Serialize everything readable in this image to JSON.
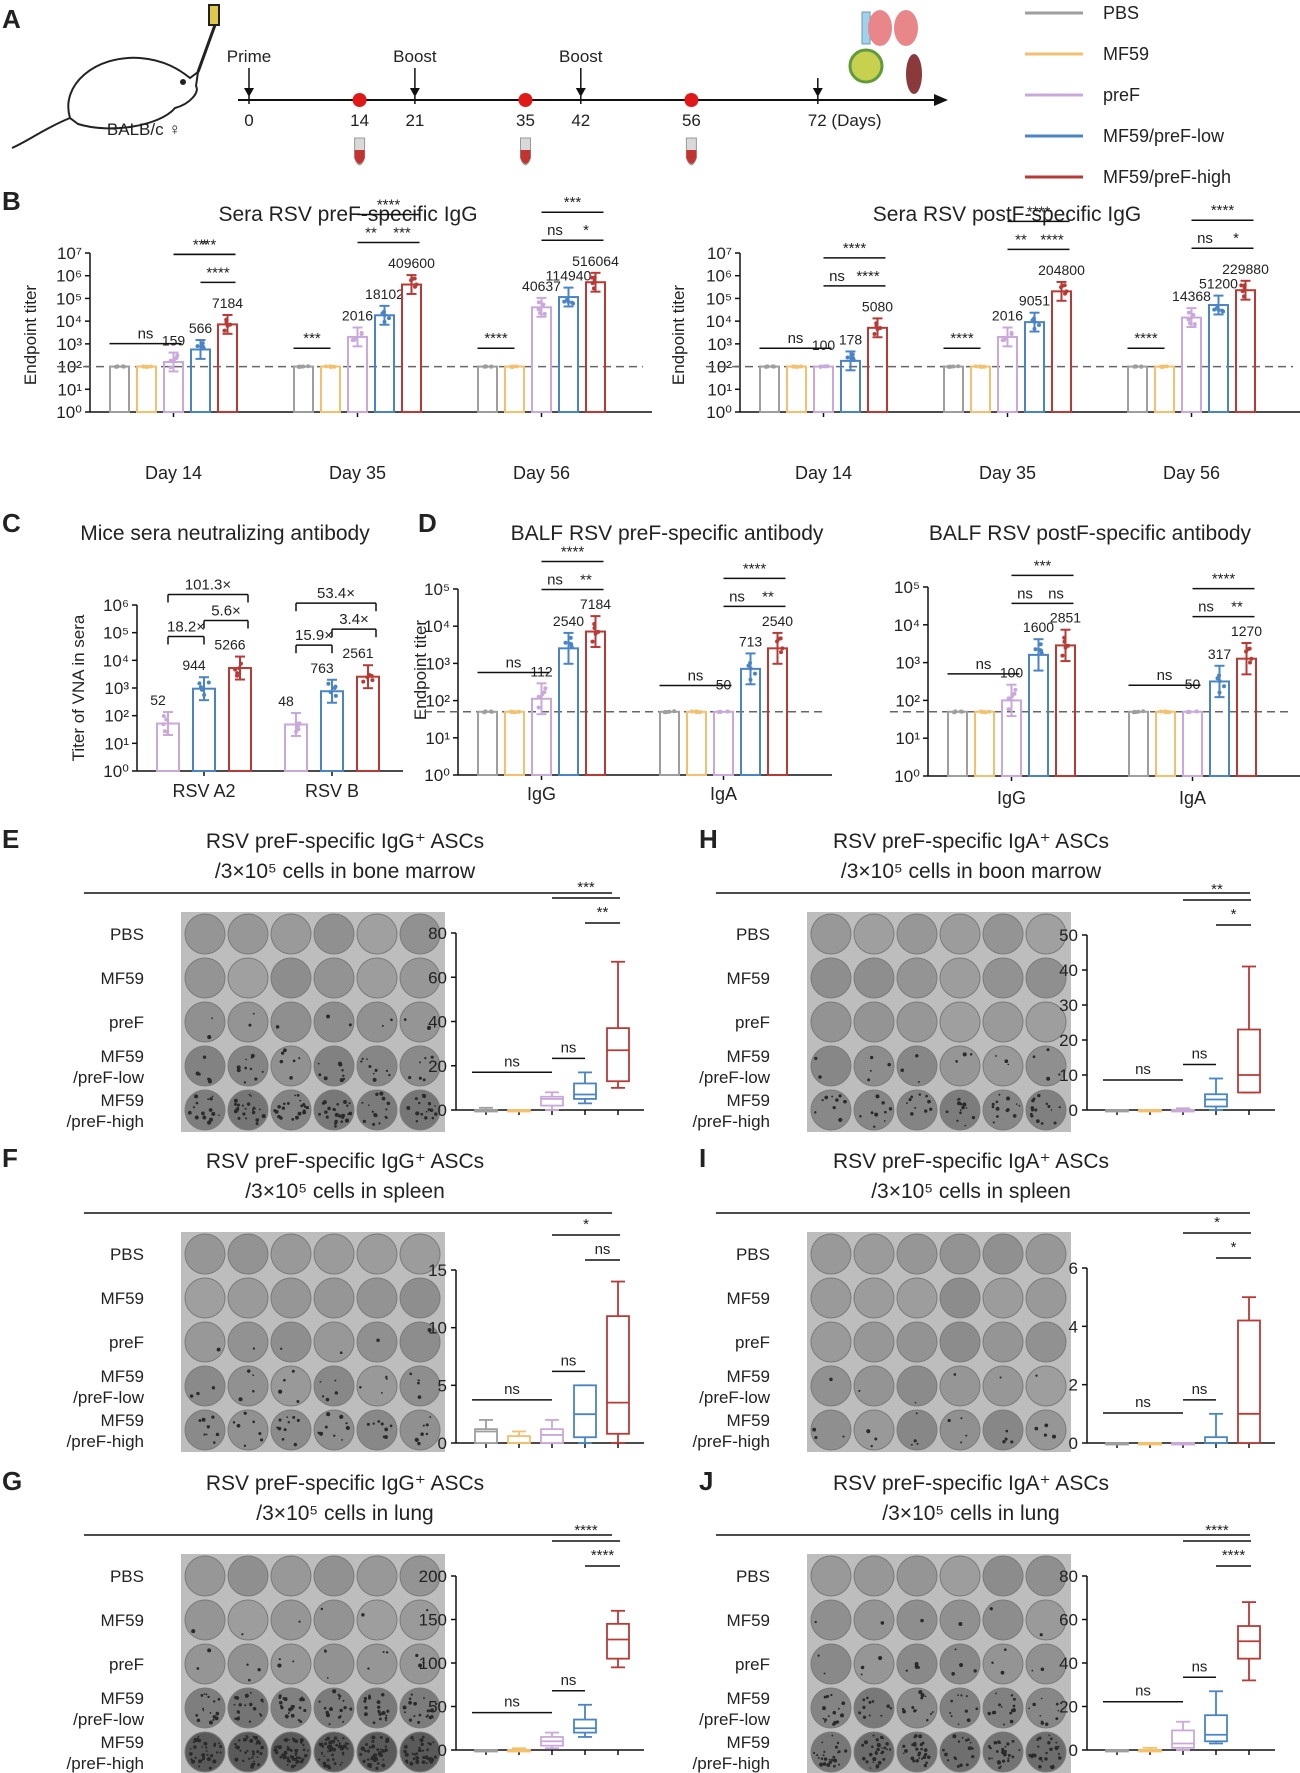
{
  "legend": [
    {
      "label": "PBS",
      "color": "#9e9e9e"
    },
    {
      "label": "MF59",
      "color": "#f2c06e"
    },
    {
      "label": "preF",
      "color": "#c9a9d9"
    },
    {
      "label": "MF59/preF-low",
      "color": "#4a84c4"
    },
    {
      "label": "MF59/preF-high",
      "color": "#b83a36"
    }
  ],
  "panel_a": {
    "letter": "A",
    "mouse_label": "BALB/c ♀",
    "events": [
      {
        "label": "Prime",
        "day": 0
      },
      {
        "label": "Boost",
        "day": 21
      },
      {
        "label": "Boost",
        "day": 42
      }
    ],
    "ticks": [
      0,
      14,
      21,
      35,
      42,
      56,
      72
    ],
    "bleed_days": [
      14,
      35,
      56
    ],
    "end_label": "72 (Days)"
  },
  "chart_data": [
    {
      "id": "b1",
      "letter": "B",
      "type": "bar",
      "title": "Sera RSV preF-specific IgG",
      "ylabel": "Endpoint titer",
      "scale": "log",
      "ylim": [
        1,
        10000000
      ],
      "tick_exponents": [
        0,
        1,
        2,
        3,
        4,
        5,
        6,
        7
      ],
      "dashed": 100,
      "categories": [
        "Day 14",
        "Day 35",
        "Day 56"
      ],
      "series_values": [
        [
          100,
          100,
          159,
          566,
          7184
        ],
        [
          100,
          100,
          2016,
          18102,
          409600
        ],
        [
          100,
          100,
          40637,
          114940,
          516064
        ]
      ],
      "labels": [
        "159",
        "566",
        "7184",
        "2016",
        "18102",
        "409600",
        "40637",
        "114940",
        "516064"
      ],
      "comparisons": [
        {
          "g": 0,
          "from": 0,
          "to": 2,
          "text": "ns"
        },
        {
          "g": 0,
          "from": 2,
          "to": 4,
          "text": "*"
        },
        {
          "g": 0,
          "from": 3,
          "to": 4,
          "text": "****"
        },
        {
          "g": 0,
          "from": 2,
          "to": 4,
          "text": "****"
        },
        {
          "g": 1,
          "from": 0,
          "to": 1,
          "text": "***"
        },
        {
          "g": 1,
          "from": 2,
          "to": 3,
          "text": "**"
        },
        {
          "g": 1,
          "from": 3,
          "to": 4,
          "text": "***"
        },
        {
          "g": 1,
          "from": 2,
          "to": 4,
          "text": "****"
        },
        {
          "g": 2,
          "from": 0,
          "to": 1,
          "text": "****"
        },
        {
          "g": 2,
          "from": 2,
          "to": 3,
          "text": "ns"
        },
        {
          "g": 2,
          "from": 3,
          "to": 4,
          "text": "*"
        },
        {
          "g": 2,
          "from": 2,
          "to": 4,
          "text": "***"
        }
      ]
    },
    {
      "id": "b2",
      "type": "bar",
      "title": "Sera RSV postF-specific IgG",
      "ylabel": "Endpoint titer",
      "scale": "log",
      "ylim": [
        1,
        10000000
      ],
      "tick_exponents": [
        0,
        1,
        2,
        3,
        4,
        5,
        6,
        7
      ],
      "dashed": 100,
      "categories": [
        "Day 14",
        "Day 35",
        "Day 56"
      ],
      "series_values": [
        [
          100,
          100,
          100,
          178,
          5080
        ],
        [
          100,
          100,
          2016,
          9051,
          204800
        ],
        [
          100,
          100,
          14368,
          51200,
          229880
        ]
      ],
      "labels": [
        "100",
        "178",
        "5080",
        "2016",
        "9051",
        "204800",
        "14368",
        "51200",
        "229880"
      ],
      "comparisons": [
        {
          "g": 0,
          "from": 0,
          "to": 2,
          "text": "ns"
        },
        {
          "g": 0,
          "from": 2,
          "to": 3,
          "text": "ns"
        },
        {
          "g": 0,
          "from": 3,
          "to": 4,
          "text": "****"
        },
        {
          "g": 0,
          "from": 2,
          "to": 4,
          "text": "****"
        },
        {
          "g": 1,
          "from": 0,
          "to": 1,
          "text": "****"
        },
        {
          "g": 1,
          "from": 2,
          "to": 3,
          "text": "**"
        },
        {
          "g": 1,
          "from": 3,
          "to": 4,
          "text": "****"
        },
        {
          "g": 1,
          "from": 2,
          "to": 4,
          "text": "****"
        },
        {
          "g": 2,
          "from": 0,
          "to": 1,
          "text": "****"
        },
        {
          "g": 2,
          "from": 2,
          "to": 3,
          "text": "ns"
        },
        {
          "g": 2,
          "from": 3,
          "to": 4,
          "text": "*"
        },
        {
          "g": 2,
          "from": 2,
          "to": 4,
          "text": "****"
        }
      ]
    },
    {
      "id": "c",
      "letter": "C",
      "type": "bar",
      "title": "Mice sera neutralizing antibody",
      "ylabel": "Titer of VNA in sera",
      "scale": "log",
      "ylim": [
        1,
        1000000
      ],
      "tick_exponents": [
        0,
        1,
        2,
        3,
        4,
        5,
        6
      ],
      "dashed": null,
      "categories": [
        "RSV A2",
        "RSV B"
      ],
      "series_values": [
        [
          52,
          944,
          5266
        ],
        [
          48,
          763,
          2561
        ]
      ],
      "labels": [
        "52",
        "944",
        "5266",
        "48",
        "763",
        "2561"
      ],
      "comparisons": [
        {
          "g": 0,
          "from": 0,
          "to": 1,
          "text": "18.2×"
        },
        {
          "g": 0,
          "from": 1,
          "to": 2,
          "text": "5.6×"
        },
        {
          "g": 0,
          "from": 0,
          "to": 2,
          "text": "101.3×"
        },
        {
          "g": 1,
          "from": 0,
          "to": 1,
          "text": "15.9×"
        },
        {
          "g": 1,
          "from": 1,
          "to": 2,
          "text": "3.4×"
        },
        {
          "g": 1,
          "from": 0,
          "to": 2,
          "text": "53.4×"
        }
      ]
    },
    {
      "id": "d1",
      "letter": "D",
      "type": "bar",
      "title": "BALF RSV preF-specific antibody",
      "ylabel": "Endpoint titer",
      "scale": "log",
      "ylim": [
        1,
        100000
      ],
      "tick_exponents": [
        0,
        1,
        2,
        3,
        4,
        5
      ],
      "dashed": 50,
      "categories": [
        "IgG",
        "IgA"
      ],
      "series_values": [
        [
          50,
          50,
          112,
          2540,
          7184
        ],
        [
          50,
          50,
          50,
          713,
          2540
        ]
      ],
      "labels": [
        "112",
        "2540",
        "7184",
        "50",
        "713",
        "2540"
      ],
      "comparisons": [
        {
          "g": 0,
          "from": 0,
          "to": 2,
          "text": "ns"
        },
        {
          "g": 0,
          "from": 2,
          "to": 3,
          "text": "ns"
        },
        {
          "g": 0,
          "from": 3,
          "to": 4,
          "text": "**"
        },
        {
          "g": 0,
          "from": 2,
          "to": 4,
          "text": "****"
        },
        {
          "g": 1,
          "from": 0,
          "to": 2,
          "text": "ns"
        },
        {
          "g": 1,
          "from": 2,
          "to": 3,
          "text": "ns"
        },
        {
          "g": 1,
          "from": 3,
          "to": 4,
          "text": "**"
        },
        {
          "g": 1,
          "from": 2,
          "to": 4,
          "text": "****"
        }
      ]
    },
    {
      "id": "d2",
      "type": "bar",
      "title": "BALF RSV postF-specific antibody",
      "ylabel": "",
      "scale": "log",
      "ylim": [
        1,
        100000
      ],
      "tick_exponents": [
        0,
        1,
        2,
        3,
        4,
        5
      ],
      "dashed": 50,
      "categories": [
        "IgG",
        "IgA"
      ],
      "series_values": [
        [
          50,
          50,
          100,
          1600,
          2851
        ],
        [
          50,
          50,
          50,
          317,
          1270
        ]
      ],
      "labels": [
        "100",
        "1600",
        "2851",
        "50",
        "317",
        "1270"
      ],
      "comparisons": [
        {
          "g": 0,
          "from": 0,
          "to": 2,
          "text": "ns"
        },
        {
          "g": 0,
          "from": 2,
          "to": 3,
          "text": "ns"
        },
        {
          "g": 0,
          "from": 3,
          "to": 4,
          "text": "ns"
        },
        {
          "g": 0,
          "from": 2,
          "to": 4,
          "text": "***"
        },
        {
          "g": 1,
          "from": 0,
          "to": 2,
          "text": "ns"
        },
        {
          "g": 1,
          "from": 2,
          "to": 3,
          "text": "ns"
        },
        {
          "g": 1,
          "from": 3,
          "to": 4,
          "text": "**"
        },
        {
          "g": 1,
          "from": 2,
          "to": 4,
          "text": "****"
        }
      ]
    },
    {
      "id": "e",
      "letter": "E",
      "type": "box",
      "title_lines": [
        "RSV preF-specific IgG⁺ ASCs",
        "/3×10⁵ cells in bone marrow"
      ],
      "ticks": [
        0,
        20,
        40,
        60,
        80
      ],
      "rows": [
        "PBS",
        "MF59",
        "preF",
        "MF59\n/preF-low",
        "MF59\n/preF-high"
      ],
      "spot_density": [
        0,
        0,
        2,
        8,
        18
      ],
      "boxes": [
        {
          "min": 0,
          "q1": 0,
          "med": 0,
          "q3": 0,
          "max": 1
        },
        {
          "min": 0,
          "q1": 0,
          "med": 0,
          "q3": 0,
          "max": 0
        },
        {
          "min": 0,
          "q1": 2,
          "med": 5,
          "q3": 6,
          "max": 8
        },
        {
          "min": 3,
          "q1": 5,
          "med": 7,
          "q3": 12,
          "max": 17
        },
        {
          "min": 10,
          "q1": 13,
          "med": 27,
          "q3": 37,
          "max": 67
        }
      ],
      "comparisons": [
        {
          "from": 0,
          "to": 2,
          "text": "ns"
        },
        {
          "from": 2,
          "to": 3,
          "text": "ns"
        },
        {
          "from": 3,
          "to": 4,
          "text": "**"
        },
        {
          "from": 2,
          "to": 4,
          "text": "***"
        }
      ]
    },
    {
      "id": "f",
      "letter": "F",
      "type": "box",
      "title_lines": [
        "RSV preF-specific IgG⁺ ASCs",
        "/3×10⁵ cells in spleen"
      ],
      "ticks": [
        0,
        5,
        10,
        15
      ],
      "rows": [
        "PBS",
        "MF59",
        "preF",
        "MF59\n/preF-low",
        "MF59\n/preF-high"
      ],
      "spot_density": [
        0,
        0,
        1,
        4,
        8
      ],
      "boxes": [
        {
          "min": 0,
          "q1": 0,
          "med": 1,
          "q3": 1.2,
          "max": 2
        },
        {
          "min": 0,
          "q1": 0,
          "med": 0,
          "q3": 0.6,
          "max": 1
        },
        {
          "min": 0,
          "q1": 0,
          "med": 0.7,
          "q3": 1.2,
          "max": 2
        },
        {
          "min": 0,
          "q1": 0.5,
          "med": 2.5,
          "q3": 5,
          "max": 5
        },
        {
          "min": 0,
          "q1": 0.8,
          "med": 3.5,
          "q3": 11,
          "max": 14
        }
      ],
      "comparisons": [
        {
          "from": 0,
          "to": 2,
          "text": "ns"
        },
        {
          "from": 2,
          "to": 3,
          "text": "ns"
        },
        {
          "from": 3,
          "to": 4,
          "text": "ns"
        },
        {
          "from": 2,
          "to": 4,
          "text": "*"
        }
      ]
    },
    {
      "id": "g",
      "letter": "G",
      "type": "box",
      "title_lines": [
        "RSV preF-specific IgG⁺ ASCs",
        "/3×10⁵ cells in lung"
      ],
      "ticks": [
        0,
        50,
        100,
        150,
        200
      ],
      "rows": [
        "PBS",
        "MF59",
        "preF",
        "MF59\n/preF-low",
        "MF59\n/preF-high"
      ],
      "spot_density": [
        0,
        1,
        3,
        20,
        45
      ],
      "boxes": [
        {
          "min": 0,
          "q1": 0,
          "med": 0,
          "q3": 0,
          "max": 0
        },
        {
          "min": 0,
          "q1": 0,
          "med": 0,
          "q3": 0,
          "max": 2
        },
        {
          "min": 2,
          "q1": 5,
          "med": 10,
          "q3": 15,
          "max": 20
        },
        {
          "min": 15,
          "q1": 20,
          "med": 25,
          "q3": 35,
          "max": 52
        },
        {
          "min": 95,
          "q1": 105,
          "med": 127,
          "q3": 145,
          "max": 160
        }
      ],
      "comparisons": [
        {
          "from": 0,
          "to": 2,
          "text": "ns"
        },
        {
          "from": 2,
          "to": 3,
          "text": "ns"
        },
        {
          "from": 3,
          "to": 4,
          "text": "****"
        },
        {
          "from": 2,
          "to": 4,
          "text": "****"
        }
      ]
    },
    {
      "id": "h",
      "letter": "H",
      "type": "box",
      "title_lines": [
        "RSV preF-specific IgA⁺ ASCs",
        "/3×10⁵ cells in boon marrow"
      ],
      "ticks": [
        0,
        10,
        20,
        30,
        40,
        50
      ],
      "rows": [
        "PBS",
        "MF59",
        "preF",
        "MF59\n/preF-low",
        "MF59\n/preF-high"
      ],
      "spot_density": [
        0,
        0,
        0,
        3,
        12
      ],
      "boxes": [
        {
          "min": 0,
          "q1": 0,
          "med": 0,
          "q3": 0,
          "max": 0
        },
        {
          "min": 0,
          "q1": 0,
          "med": 0,
          "q3": 0,
          "max": 0
        },
        {
          "min": 0,
          "q1": 0,
          "med": 0,
          "q3": 0,
          "max": 0.5
        },
        {
          "min": 0,
          "q1": 1,
          "med": 3,
          "q3": 4.5,
          "max": 9
        },
        {
          "min": 5,
          "q1": 5,
          "med": 10,
          "q3": 23,
          "max": 41
        }
      ],
      "comparisons": [
        {
          "from": 0,
          "to": 2,
          "text": "ns"
        },
        {
          "from": 2,
          "to": 3,
          "text": "ns"
        },
        {
          "from": 3,
          "to": 4,
          "text": "*"
        },
        {
          "from": 2,
          "to": 4,
          "text": "**"
        }
      ]
    },
    {
      "id": "i",
      "letter": "I",
      "type": "box",
      "title_lines": [
        "RSV preF-specific IgA⁺ ASCs",
        "/3×10⁵ cells in spleen"
      ],
      "ticks": [
        0,
        2,
        4,
        6
      ],
      "rows": [
        "PBS",
        "MF59",
        "preF",
        "MF59\n/preF-low",
        "MF59\n/preF-high"
      ],
      "spot_density": [
        0,
        0,
        0,
        1,
        4
      ],
      "boxes": [
        {
          "min": 0,
          "q1": 0,
          "med": 0,
          "q3": 0,
          "max": 0
        },
        {
          "min": 0,
          "q1": 0,
          "med": 0,
          "q3": 0,
          "max": 0
        },
        {
          "min": 0,
          "q1": 0,
          "med": 0,
          "q3": 0,
          "max": 0
        },
        {
          "min": 0,
          "q1": 0,
          "med": 0,
          "q3": 0.2,
          "max": 1
        },
        {
          "min": 0,
          "q1": 0,
          "med": 1,
          "q3": 4.2,
          "max": 5
        }
      ],
      "comparisons": [
        {
          "from": 0,
          "to": 2,
          "text": "ns"
        },
        {
          "from": 2,
          "to": 3,
          "text": "ns"
        },
        {
          "from": 3,
          "to": 4,
          "text": "*"
        },
        {
          "from": 2,
          "to": 4,
          "text": "*"
        }
      ]
    },
    {
      "id": "j",
      "letter": "J",
      "type": "box",
      "title_lines": [
        "RSV preF-specific IgA⁺ ASCs",
        "/3×10⁵ cells in lung"
      ],
      "ticks": [
        0,
        20,
        40,
        60,
        80
      ],
      "rows": [
        "PBS",
        "MF59",
        "preF",
        "MF59\n/preF-low",
        "MF59\n/preF-high"
      ],
      "spot_density": [
        0,
        1,
        3,
        12,
        25
      ],
      "boxes": [
        {
          "min": 0,
          "q1": 0,
          "med": 0,
          "q3": 0,
          "max": 0
        },
        {
          "min": 0,
          "q1": 0,
          "med": 0,
          "q3": 0,
          "max": 1
        },
        {
          "min": 0,
          "q1": 1,
          "med": 3,
          "q3": 9,
          "max": 13
        },
        {
          "min": 3,
          "q1": 4,
          "med": 7,
          "q3": 16,
          "max": 27
        },
        {
          "min": 32,
          "q1": 42,
          "med": 50,
          "q3": 57,
          "max": 68
        }
      ],
      "comparisons": [
        {
          "from": 0,
          "to": 2,
          "text": "ns"
        },
        {
          "from": 2,
          "to": 3,
          "text": "ns"
        },
        {
          "from": 3,
          "to": 4,
          "text": "****"
        },
        {
          "from": 2,
          "to": 4,
          "text": "****"
        }
      ]
    }
  ]
}
